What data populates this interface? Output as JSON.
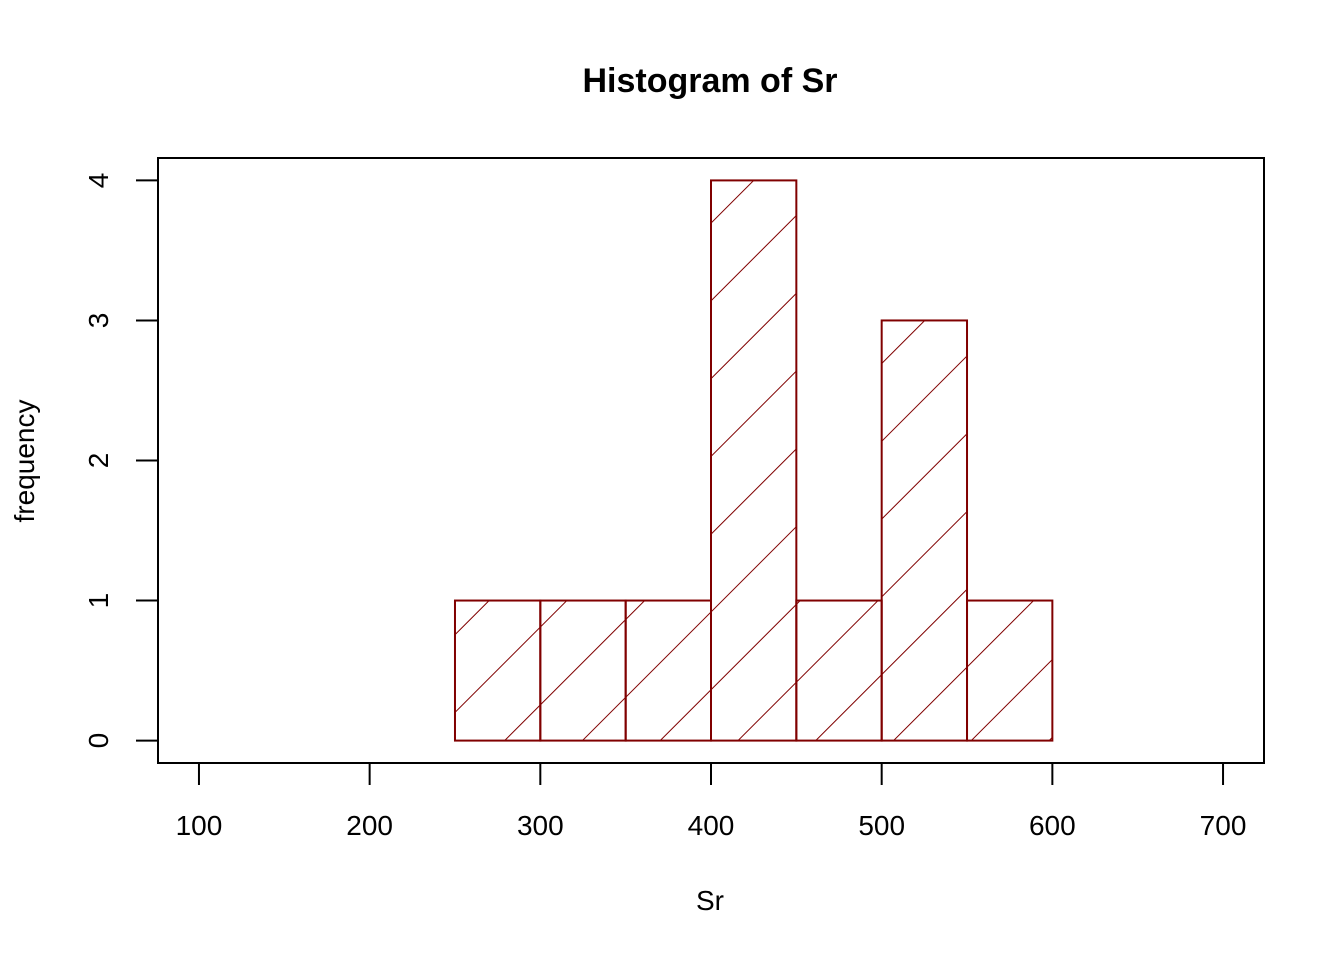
{
  "chart_data": {
    "type": "bar",
    "title": "Histogram of Sr",
    "xlabel": "Sr",
    "ylabel": "frequency",
    "bins": [
      {
        "start": 250,
        "end": 300,
        "count": 1
      },
      {
        "start": 300,
        "end": 350,
        "count": 1
      },
      {
        "start": 350,
        "end": 400,
        "count": 1
      },
      {
        "start": 400,
        "end": 450,
        "count": 4
      },
      {
        "start": 450,
        "end": 500,
        "count": 1
      },
      {
        "start": 500,
        "end": 550,
        "count": 3
      },
      {
        "start": 550,
        "end": 600,
        "count": 1
      }
    ],
    "xlim": [
      76,
      724
    ],
    "ylim": [
      -0.16,
      4.16
    ],
    "x_ticks": [
      "100",
      "200",
      "300",
      "400",
      "500",
      "600",
      "700"
    ],
    "y_ticks": [
      "0",
      "1",
      "2",
      "3",
      "4"
    ],
    "grid": false,
    "bar_fill": "hatched (45 degree lines)",
    "bar_color": "#800000"
  }
}
